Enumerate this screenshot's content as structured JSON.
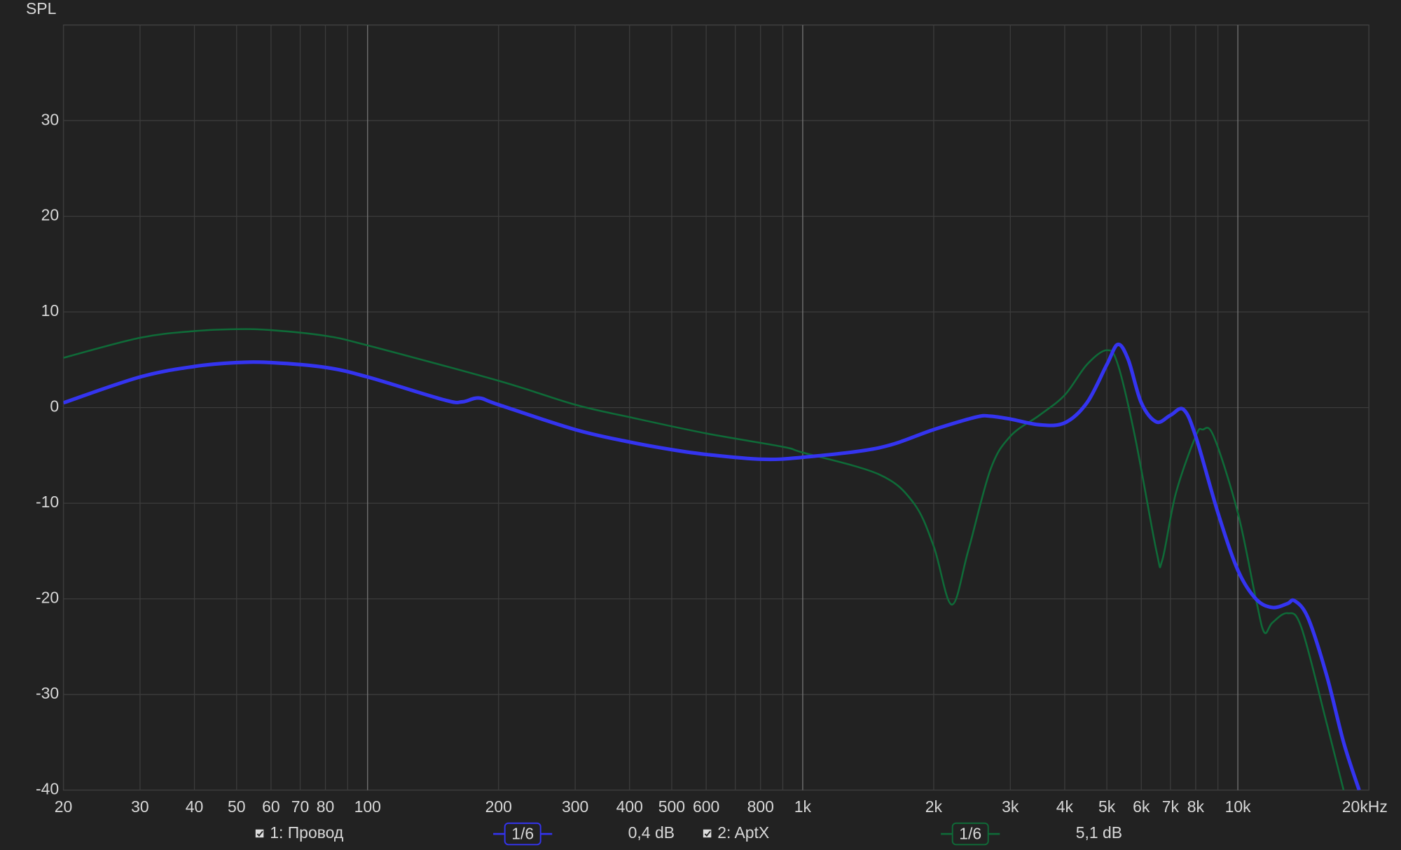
{
  "chart_data": {
    "type": "line",
    "y_label": "SPL",
    "xscale": "log",
    "xlim": [
      20,
      20000
    ],
    "ylim": [
      -40,
      40
    ],
    "xticks": [
      20,
      30,
      40,
      50,
      60,
      70,
      80,
      100,
      200,
      300,
      400,
      500,
      600,
      800,
      {
        "value": 1000,
        "label": "1k"
      },
      {
        "value": 2000,
        "label": "2k"
      },
      {
        "value": 3000,
        "label": "3k"
      },
      {
        "value": 4000,
        "label": "4k"
      },
      {
        "value": 5000,
        "label": "5k"
      },
      {
        "value": 6000,
        "label": "6k"
      },
      {
        "value": 7000,
        "label": "7k"
      },
      {
        "value": 8000,
        "label": "8k"
      },
      {
        "value": 10000,
        "label": "10k"
      },
      {
        "value": 20000,
        "label": "20kHz"
      }
    ],
    "xgrid_minor": [
      90,
      700,
      900,
      9000
    ],
    "yticks": [
      -40,
      -30,
      -20,
      -10,
      0,
      10,
      20,
      30
    ],
    "grid": true,
    "series": [
      {
        "name": "1: Провод",
        "color": "#3434f0",
        "smoothing": "1/6",
        "level": "0,4 dB",
        "x": [
          20,
          30,
          40,
          50,
          60,
          80,
          100,
          150,
          165,
          180,
          200,
          300,
          400,
          500,
          600,
          800,
          1000,
          1500,
          2000,
          2500,
          2700,
          3000,
          3500,
          4000,
          4500,
          5000,
          5300,
          5600,
          6000,
          6500,
          7000,
          7500,
          8000,
          9000,
          10000,
          11000,
          12000,
          13000,
          13500,
          14500,
          16000,
          17500,
          19000
        ],
        "values": [
          0.5,
          3.2,
          4.3,
          4.7,
          4.7,
          4.2,
          3.2,
          0.8,
          0.6,
          1.0,
          0.3,
          -2.3,
          -3.6,
          -4.4,
          -4.9,
          -5.4,
          -5.2,
          -4.2,
          -2.3,
          -1.0,
          -0.9,
          -1.2,
          -1.8,
          -1.6,
          0.5,
          4.5,
          6.6,
          5.0,
          0.5,
          -1.5,
          -0.8,
          -0.2,
          -3.0,
          -11,
          -17,
          -20,
          -20.9,
          -20.5,
          -20.2,
          -22,
          -28,
          -35,
          -40
        ]
      },
      {
        "name": "2: AptX",
        "color": "#0f6b38",
        "smoothing": "1/6",
        "level": "5,1 dB",
        "x": [
          20,
          30,
          40,
          50,
          60,
          80,
          100,
          200,
          300,
          400,
          600,
          900,
          1000,
          1500,
          1800,
          2000,
          2200,
          2400,
          2700,
          3000,
          3500,
          4000,
          4500,
          5000,
          5300,
          5800,
          6500,
          6700,
          7200,
          8000,
          8300,
          8800,
          10000,
          11000,
          11500,
          12000,
          13000,
          14000,
          16000,
          17500
        ],
        "values": [
          5.2,
          7.3,
          8.0,
          8.2,
          8.1,
          7.5,
          6.5,
          2.8,
          0.3,
          -1.0,
          -2.7,
          -4.1,
          -4.7,
          -7.0,
          -10,
          -14.5,
          -20.6,
          -15,
          -6.5,
          -3.0,
          -0.8,
          1.3,
          4.5,
          6.0,
          4.5,
          -3,
          -15,
          -16,
          -9,
          -3,
          -2.3,
          -3,
          -11,
          -20,
          -23.5,
          -22.5,
          -21.5,
          -23,
          -33,
          -40
        ]
      }
    ]
  }
}
